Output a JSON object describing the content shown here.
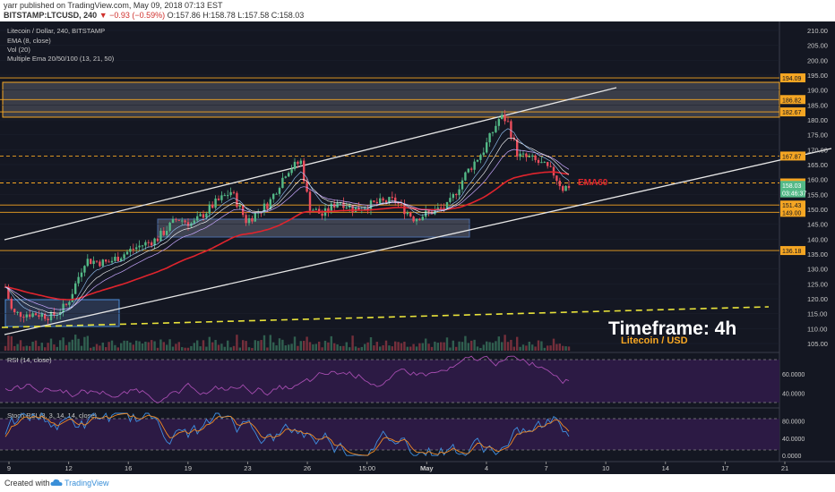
{
  "header": {
    "publisher_line": "yarr published on TradingView.com, May 09, 2018 07:13 EST",
    "symbol": "BITSTAMP:LTCUSD, 240",
    "change": "▼ −0.93 (−0.59%)",
    "ohlc": "O:157.86 H:158.78 L:157.58 C:158.03"
  },
  "legend": {
    "title": "Litecoin / Dollar, 240, BITSTAMP",
    "ema": "EMA (8, close)",
    "vol": "Vol (20)",
    "multi_ema": "Multiple Ema 20/50/100 (13, 21, 50)"
  },
  "annotations": {
    "ema60": "EMA60",
    "timeframe": "Timeframe: 4h",
    "pair": "Litecoin / USD"
  },
  "chart_data": {
    "type": "candlestick",
    "y_range": [
      102,
      213
    ],
    "y_ticks": [
      "210.00",
      "205.00",
      "200.00",
      "195.00",
      "190.00",
      "185.00",
      "180.00",
      "175.00",
      "170.00",
      "165.00",
      "160.00",
      "155.00",
      "150.00",
      "145.00",
      "140.00",
      "135.00",
      "130.00",
      "125.00",
      "120.00",
      "115.00",
      "110.00",
      "105.00"
    ],
    "x_ticks": [
      "9",
      "12",
      "16",
      "19",
      "23",
      "26",
      "15:00",
      "May",
      "4",
      "7",
      "10",
      "14",
      "17",
      "21"
    ],
    "price_labels": [
      {
        "value": 194.09,
        "text": "194.09",
        "style": "solid"
      },
      {
        "value": 186.82,
        "text": "186.82",
        "style": "solid"
      },
      {
        "value": 182.67,
        "text": "182.67",
        "style": "solid"
      },
      {
        "value": 167.87,
        "text": "167.87",
        "style": "dashed"
      },
      {
        "value": 158.85,
        "text": "158.85",
        "style": "dashed"
      },
      {
        "value": 158.03,
        "text": "158.03",
        "style": "current"
      },
      {
        "value": 155.5,
        "text": "03:46:37",
        "style": "timer"
      },
      {
        "value": 151.43,
        "text": "151.43",
        "style": "solid"
      },
      {
        "value": 149.0,
        "text": "149.00",
        "style": "solid"
      },
      {
        "value": 136.18,
        "text": "136.18",
        "style": "solid"
      }
    ],
    "rsi": {
      "label": "RSI (14, close)",
      "ticks": [
        "60.0000",
        "40.0000"
      ],
      "range": [
        25,
        80
      ]
    },
    "stoch": {
      "label": "Stoch RSI (3, 3, 14, 14, close)",
      "ticks": [
        "80.0000",
        "40.0000",
        "0.0000"
      ],
      "range": [
        -10,
        100
      ]
    }
  },
  "footer": {
    "created_with": "Created with",
    "brand": "TradingView"
  },
  "colors": {
    "bg": "#141722",
    "up": "#53b987",
    "down": "#eb4d5c",
    "ema_red": "#e0242d",
    "orange": "#f5a623",
    "yellow_dash": "#e9e33a",
    "rsi_fill": "#2c1a44"
  }
}
